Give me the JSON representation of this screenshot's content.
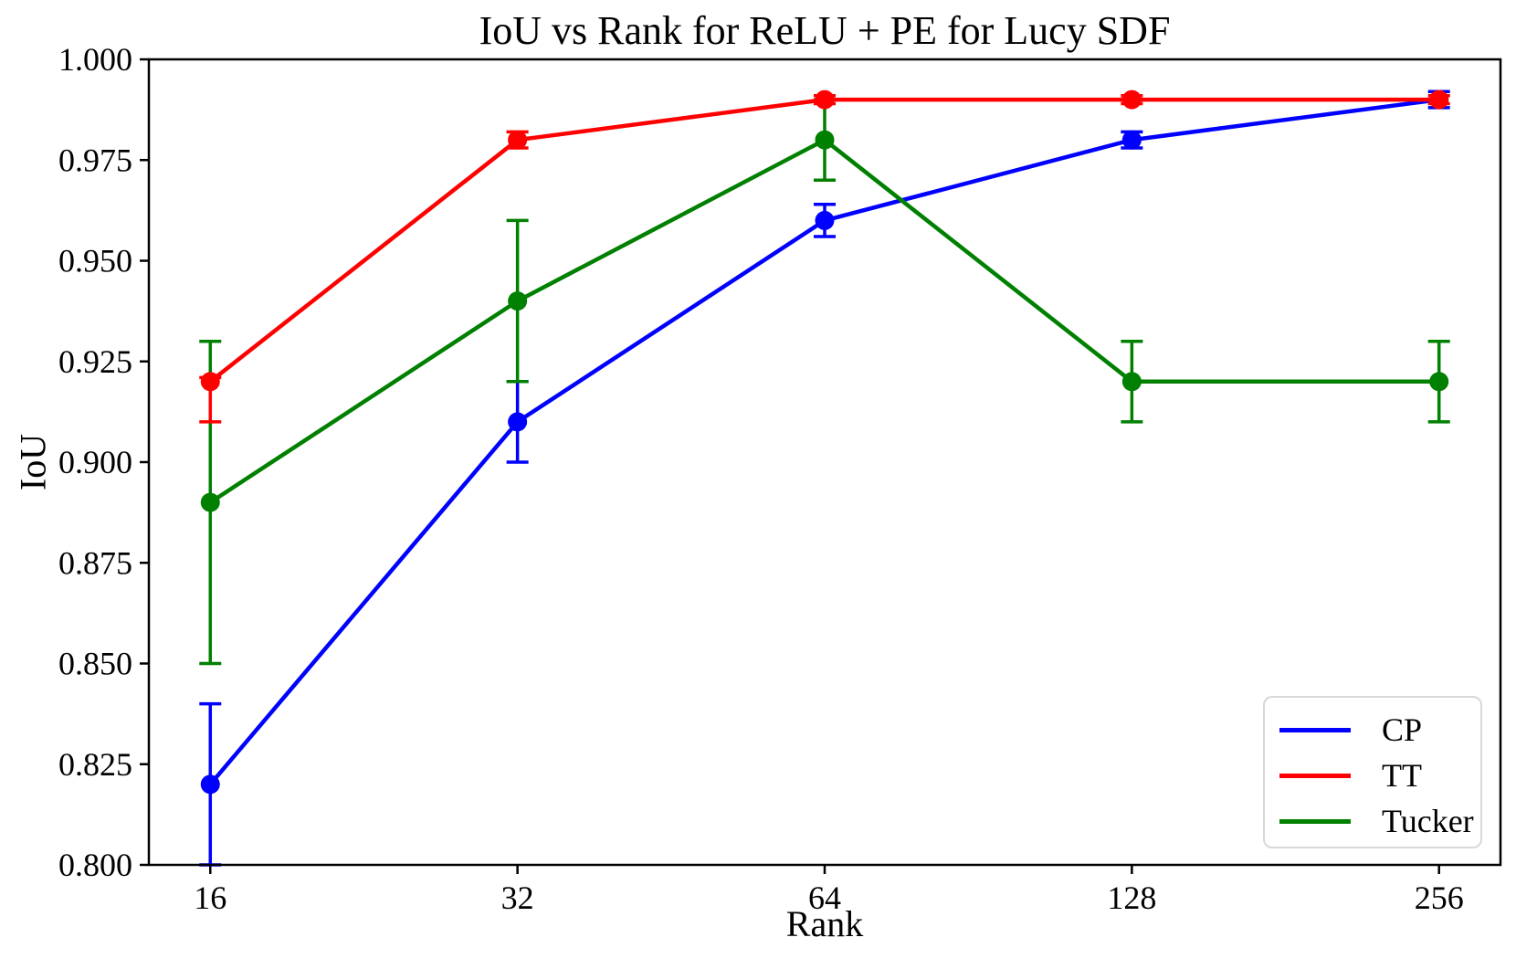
{
  "chart_data": {
    "type": "line",
    "title": "IoU vs Rank for ReLU + PE for Lucy SDF",
    "xlabel": "Rank",
    "ylabel": "IoU",
    "x_scale": "log2",
    "x": [
      16,
      32,
      64,
      128,
      256
    ],
    "xtick_labels": [
      "16",
      "32",
      "64",
      "128",
      "256"
    ],
    "xlim_log2": [
      3.8,
      8.2
    ],
    "ylim": [
      0.8,
      1.0
    ],
    "yticks": [
      0.8,
      0.825,
      0.85,
      0.875,
      0.9,
      0.925,
      0.95,
      0.975,
      1.0
    ],
    "ytick_labels": [
      "0.800",
      "0.825",
      "0.850",
      "0.875",
      "0.900",
      "0.925",
      "0.950",
      "0.975",
      "1.000"
    ],
    "grid": false,
    "legend_position": "lower right",
    "series": [
      {
        "name": "CP",
        "color": "#0000ff",
        "values": [
          0.82,
          0.91,
          0.96,
          0.98,
          0.99
        ],
        "yerr_minus": [
          0.02,
          0.01,
          0.004,
          0.002,
          0.002
        ],
        "yerr_plus": [
          0.02,
          0.01,
          0.004,
          0.002,
          0.002
        ]
      },
      {
        "name": "TT",
        "color": "#ff0000",
        "values": [
          0.92,
          0.98,
          0.99,
          0.99,
          0.99
        ],
        "yerr_minus": [
          0.01,
          0.002,
          0.001,
          0.001,
          0.001
        ],
        "yerr_plus": [
          0.001,
          0.002,
          0.001,
          0.001,
          0.001
        ]
      },
      {
        "name": "Tucker",
        "color": "#008000",
        "values": [
          0.89,
          0.94,
          0.98,
          0.92,
          0.92
        ],
        "yerr_minus": [
          0.04,
          0.02,
          0.01,
          0.01,
          0.01
        ],
        "yerr_plus": [
          0.04,
          0.02,
          0.01,
          0.01,
          0.01
        ]
      }
    ],
    "draw_order": [
      "CP",
      "Tucker",
      "TT"
    ]
  },
  "legend": {
    "entries": [
      {
        "label": "CP",
        "color": "#0000ff"
      },
      {
        "label": "TT",
        "color": "#ff0000"
      },
      {
        "label": "Tucker",
        "color": "#008000"
      }
    ]
  }
}
